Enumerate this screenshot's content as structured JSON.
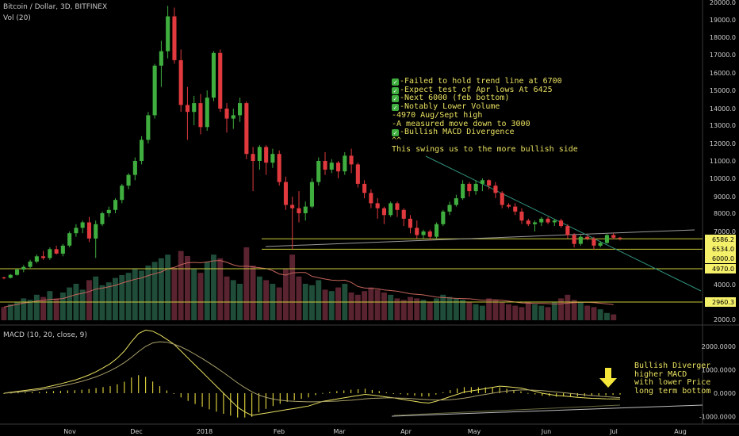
{
  "header": {
    "title": "Bitcoin / Dollar, 3D, BITFINEX",
    "volume": "Vol (20)",
    "macd": "MACD (10, 20, close, 9)"
  },
  "annotation": [
    {
      "check": true,
      "text": "-Failed to hold trend line at 6700"
    },
    {
      "check": true,
      "text": "-Expect test of Apr lows At 6425"
    },
    {
      "check": true,
      "text": "-Next 6000 (feb bottom)"
    },
    {
      "check": true,
      "text": "-Notably Lower Volume"
    },
    {
      "check": false,
      "text": "-4970 Aug/Sept high"
    },
    {
      "check": false,
      "text": "-A measured move down to 3000"
    },
    {
      "check": true,
      "text": "-Bullish MACD Divergence"
    },
    {
      "check": false,
      "text": "^^"
    },
    {
      "check": false,
      "text": "This swings us to the more bullish side"
    }
  ],
  "macd_note": [
    "Bullish Diverger",
    "higher MACD",
    "with lower Price",
    "long term bottom"
  ],
  "colors": {
    "up": "#3fae3f",
    "down": "#e0393e",
    "accent": "#f5f06a",
    "trend": "#2f8f7a"
  },
  "chart_data": [
    {
      "type": "candlestick",
      "title": "Bitcoin / Dollar, 3D, BITFINEX",
      "ylim": [
        1800,
        20000
      ],
      "yticks": [
        20000,
        19000,
        18000,
        17000,
        16000,
        15000,
        14000,
        13000,
        12000,
        11000,
        10000,
        9000,
        8000,
        7000,
        4000,
        2000
      ],
      "xticks": [
        "Nov",
        "Dec",
        "2018",
        "Feb",
        "Mar",
        "Apr",
        "May",
        "Jun",
        "Jul",
        "Aug"
      ],
      "price_tags": [
        {
          "value": 6586.2,
          "label": "6586.2",
          "color": "#f5f06a"
        },
        {
          "value": 6534,
          "label": "6534.0",
          "color": "#f5f06a"
        },
        {
          "value": 6000,
          "label": "6000.0",
          "color": "#f5f06a"
        },
        {
          "value": 4970,
          "label": "4970.0",
          "color": "#f5f06a"
        },
        {
          "value": 2960.3,
          "label": "2960.3",
          "color": "#f5f06a"
        }
      ],
      "candles": [
        [
          4400,
          4450,
          4300,
          4380
        ],
        [
          4380,
          4600,
          4350,
          4550
        ],
        [
          4550,
          4900,
          4500,
          4850
        ],
        [
          4850,
          5100,
          4700,
          5000
        ],
        [
          5000,
          5400,
          4900,
          5300
        ],
        [
          5300,
          5700,
          5200,
          5600
        ],
        [
          5600,
          5900,
          5400,
          5500
        ],
        [
          5500,
          6100,
          5400,
          6000
        ],
        [
          6000,
          6200,
          5700,
          5750
        ],
        [
          5750,
          6300,
          5600,
          6200
        ],
        [
          6200,
          7000,
          6100,
          6900
        ],
        [
          6900,
          7400,
          6700,
          7200
        ],
        [
          7200,
          7600,
          6900,
          7500
        ],
        [
          7500,
          7800,
          6400,
          6600
        ],
        [
          6600,
          7600,
          5500,
          7400
        ],
        [
          7400,
          8100,
          7300,
          8000
        ],
        [
          8000,
          8400,
          7800,
          8200
        ],
        [
          8200,
          8900,
          8000,
          8800
        ],
        [
          8800,
          9700,
          8600,
          9600
        ],
        [
          9600,
          10300,
          9400,
          10200
        ],
        [
          10200,
          11200,
          9900,
          11000
        ],
        [
          11000,
          12400,
          10800,
          12200
        ],
        [
          12200,
          13800,
          12000,
          13600
        ],
        [
          13600,
          16500,
          13400,
          16400
        ],
        [
          16400,
          17800,
          15200,
          17200
        ],
        [
          17200,
          19800,
          16800,
          19200
        ],
        [
          19200,
          19700,
          16500,
          16700
        ],
        [
          16700,
          17300,
          13800,
          14200
        ],
        [
          14200,
          15200,
          12200,
          13800
        ],
        [
          13800,
          14700,
          13000,
          14300
        ],
        [
          14300,
          14800,
          12500,
          12900
        ],
        [
          12900,
          15000,
          12700,
          14600
        ],
        [
          14600,
          17200,
          14400,
          17100
        ],
        [
          17100,
          17300,
          13800,
          14000
        ],
        [
          14000,
          14300,
          12600,
          13400
        ],
        [
          13400,
          14000,
          12800,
          13600
        ],
        [
          13600,
          14600,
          13200,
          14300
        ],
        [
          14300,
          14400,
          11100,
          11400
        ],
        [
          11400,
          11800,
          9300,
          11000
        ],
        [
          11000,
          11900,
          10500,
          11800
        ],
        [
          11800,
          11900,
          10200,
          10900
        ],
        [
          10900,
          11700,
          10600,
          11400
        ],
        [
          11400,
          11600,
          9600,
          9800
        ],
        [
          9800,
          10100,
          8200,
          8500
        ],
        [
          8500,
          9000,
          6000,
          8300
        ],
        [
          8300,
          9300,
          7500,
          8000
        ],
        [
          8000,
          8700,
          7600,
          8400
        ],
        [
          8400,
          10000,
          8300,
          9800
        ],
        [
          9800,
          11200,
          9600,
          11000
        ],
        [
          11000,
          11500,
          10200,
          10500
        ],
        [
          10500,
          11100,
          10300,
          10900
        ],
        [
          10900,
          11000,
          10000,
          10400
        ],
        [
          10400,
          11500,
          10200,
          11300
        ],
        [
          11300,
          11700,
          10300,
          10800
        ],
        [
          10800,
          10900,
          9500,
          9700
        ],
        [
          9700,
          9900,
          8900,
          9200
        ],
        [
          9200,
          9400,
          8300,
          8600
        ],
        [
          8600,
          8900,
          7700,
          8300
        ],
        [
          8300,
          8400,
          7400,
          7900
        ],
        [
          7900,
          8700,
          7800,
          8600
        ],
        [
          8600,
          8700,
          7800,
          8200
        ],
        [
          8200,
          8300,
          7300,
          7700
        ],
        [
          7700,
          7900,
          6900,
          7200
        ],
        [
          7200,
          7600,
          6600,
          6800
        ],
        [
          6800,
          7100,
          6600,
          7000
        ],
        [
          7000,
          7100,
          6500,
          6700
        ],
        [
          6700,
          7500,
          6600,
          7400
        ],
        [
          7400,
          8200,
          7300,
          8100
        ],
        [
          8100,
          8700,
          7900,
          8500
        ],
        [
          8500,
          9100,
          8400,
          8900
        ],
        [
          8900,
          9900,
          8800,
          9700
        ],
        [
          9700,
          9800,
          9000,
          9300
        ],
        [
          9300,
          9900,
          9100,
          9700
        ],
        [
          9700,
          10000,
          9300,
          9900
        ],
        [
          9900,
          9950,
          9400,
          9600
        ],
        [
          9600,
          9800,
          8900,
          9200
        ],
        [
          9200,
          9300,
          8300,
          8500
        ],
        [
          8500,
          8600,
          8300,
          8400
        ],
        [
          8400,
          8600,
          7900,
          8100
        ],
        [
          8100,
          8300,
          7400,
          7600
        ],
        [
          7600,
          7700,
          7300,
          7400
        ],
        [
          7400,
          7600,
          7000,
          7500
        ],
        [
          7500,
          7800,
          7300,
          7700
        ],
        [
          7700,
          7800,
          7400,
          7500
        ],
        [
          7500,
          7700,
          7300,
          7600
        ],
        [
          7600,
          7700,
          7200,
          7300
        ],
        [
          7300,
          7400,
          6600,
          6800
        ],
        [
          6800,
          6900,
          6100,
          6300
        ],
        [
          6300,
          6800,
          6200,
          6700
        ],
        [
          6700,
          6800,
          6500,
          6600
        ],
        [
          6600,
          6700,
          6000,
          6200
        ],
        [
          6200,
          6450,
          6100,
          6350
        ],
        [
          6350,
          6850,
          6300,
          6800
        ],
        [
          6800,
          6900,
          6550,
          6650
        ],
        [
          6650,
          6700,
          6500,
          6600
        ]
      ]
    },
    {
      "type": "bar",
      "title": "Vol (20)",
      "values": [
        18,
        22,
        25,
        30,
        28,
        35,
        32,
        40,
        30,
        38,
        45,
        50,
        42,
        55,
        60,
        48,
        52,
        58,
        62,
        65,
        70,
        68,
        75,
        80,
        85,
        90,
        72,
        95,
        88,
        70,
        65,
        80,
        90,
        85,
        60,
        55,
        50,
        100,
        75,
        60,
        55,
        50,
        45,
        70,
        90,
        60,
        50,
        48,
        55,
        42,
        40,
        45,
        50,
        38,
        35,
        40,
        45,
        42,
        38,
        35,
        30,
        28,
        32,
        30,
        28,
        25,
        30,
        35,
        32,
        30,
        28,
        25,
        22,
        20,
        30,
        28,
        25,
        22,
        20,
        18,
        25,
        22,
        20,
        18,
        25,
        30,
        35,
        28,
        25,
        20,
        18,
        15,
        10,
        8
      ],
      "moving_average": "Vol (20)"
    },
    {
      "type": "line",
      "title": "MACD (10, 20, close, 9)",
      "ylim": [
        -1200,
        2800
      ],
      "yticks": [
        2000,
        1000,
        0,
        -1000
      ],
      "ytick_labels": [
        "2000.0000",
        "1000.0000",
        "0.0000",
        "-1000.0000"
      ],
      "series": [
        {
          "name": "",
          "values": [
            0,
            40,
            80,
            120,
            160,
            200,
            260,
            330,
            400,
            480,
            560,
            660,
            780,
            920,
            1080,
            1260,
            1500,
            1800,
            2200,
            2550,
            2700,
            2650,
            2500,
            2300,
            2100,
            1800,
            1500,
            1200,
            900,
            600,
            300,
            0,
            -300,
            -600,
            -800,
            -950,
            -900,
            -850,
            -800,
            -750,
            -700,
            -650,
            -600,
            -550,
            -450,
            -350,
            -300,
            -250,
            -200,
            -150,
            -100,
            -50,
            -80,
            -120,
            -160,
            -200,
            -250,
            -300,
            -350,
            -400,
            -420,
            -350,
            -250,
            -150,
            -50,
            50,
            100,
            150,
            200,
            250,
            300,
            280,
            250,
            220,
            150,
            80,
            0,
            -50,
            -100,
            -120,
            -150,
            -180,
            -200,
            -220,
            -230,
            -240,
            -245,
            -250
          ]
        },
        {
          "name": "",
          "values": [
            0,
            20,
            50,
            80,
            110,
            150,
            190,
            240,
            300,
            360,
            430,
            510,
            600,
            700,
            820,
            960,
            1120,
            1310,
            1530,
            1780,
            2000,
            2150,
            2200,
            2180,
            2100,
            1980,
            1830,
            1660,
            1480,
            1290,
            1090,
            880,
            660,
            440,
            240,
            60,
            -80,
            -180,
            -250,
            -300,
            -330,
            -350,
            -360,
            -370,
            -370,
            -360,
            -350,
            -340,
            -320,
            -300,
            -270,
            -240,
            -220,
            -210,
            -200,
            -200,
            -210,
            -220,
            -240,
            -260,
            -280,
            -290,
            -290,
            -280,
            -250,
            -210,
            -160,
            -100,
            -50,
            0,
            50,
            90,
            120,
            140,
            140,
            130,
            110,
            80,
            50,
            20,
            -10,
            -40,
            -70,
            -100,
            -130,
            -150,
            -170,
            -190
          ]
        }
      ]
    }
  ]
}
